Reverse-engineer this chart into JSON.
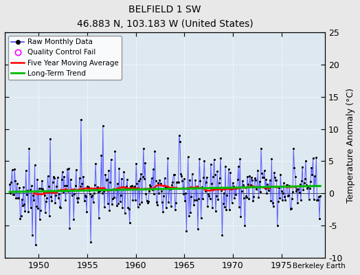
{
  "title": "BELFIELD 1 SW",
  "subtitle": "46.883 N, 103.183 W (United States)",
  "ylabel": "Temperature Anomaly (°C)",
  "attribution": "Berkeley Earth",
  "xlim": [
    1946.5,
    1979.5
  ],
  "ylim": [
    -10,
    25
  ],
  "yticks": [
    -10,
    -5,
    0,
    5,
    10,
    15,
    20,
    25
  ],
  "xticks": [
    1950,
    1955,
    1960,
    1965,
    1970,
    1975
  ],
  "bg_color": "#e8e8e8",
  "plot_bg": "#dde8f0",
  "line_color": "#4444ff",
  "ma_color": "#ff0000",
  "trend_color": "#00bb00",
  "dot_color": "#000000",
  "qc_color": "#ff00ff",
  "seed": 42
}
